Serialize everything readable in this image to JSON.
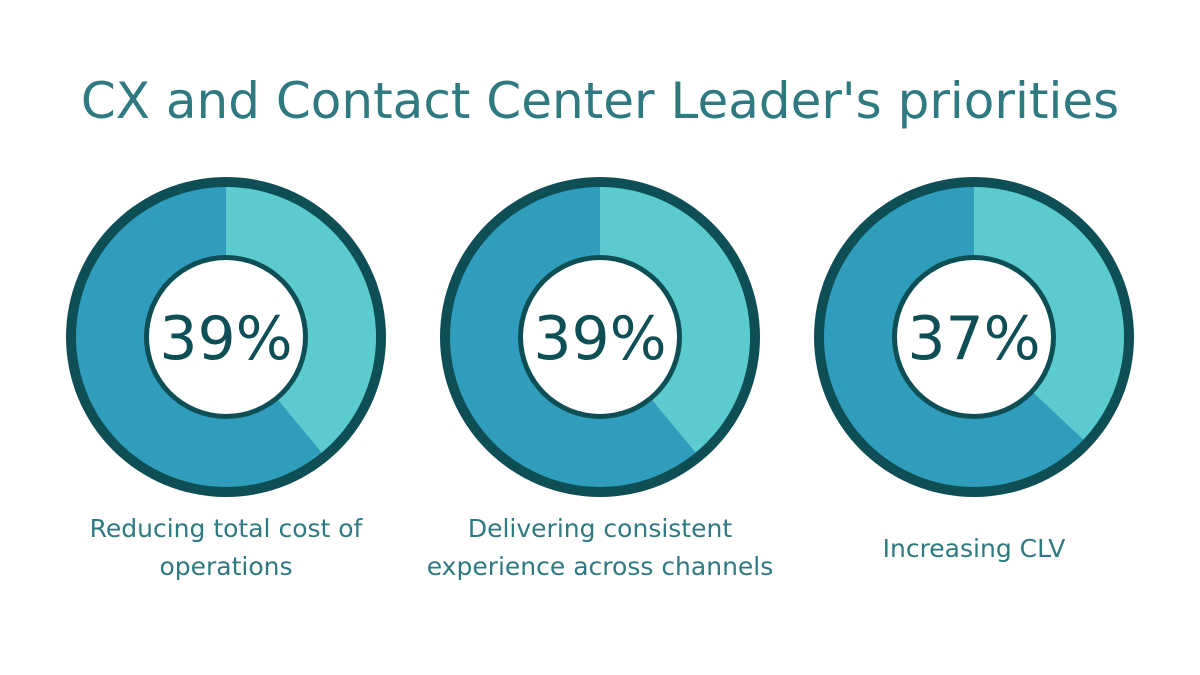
{
  "colors": {
    "title": "#2e7a80",
    "ring": "#0e4f55",
    "base": "#2f9dbb",
    "highlight": "#5bcbcf",
    "center": "#ffffff",
    "caption": "#2e7a80"
  },
  "chart_data": {
    "type": "pie",
    "title": "CX and Contact Center Leader's priorities",
    "items": [
      {
        "label": "Reducing total cost of operations",
        "value": 39,
        "display": "39%"
      },
      {
        "label": "Delivering consistent experience across channels",
        "value": 39,
        "display": "39%"
      },
      {
        "label": "Increasing CLV",
        "value": 37,
        "display": "37%"
      }
    ]
  }
}
